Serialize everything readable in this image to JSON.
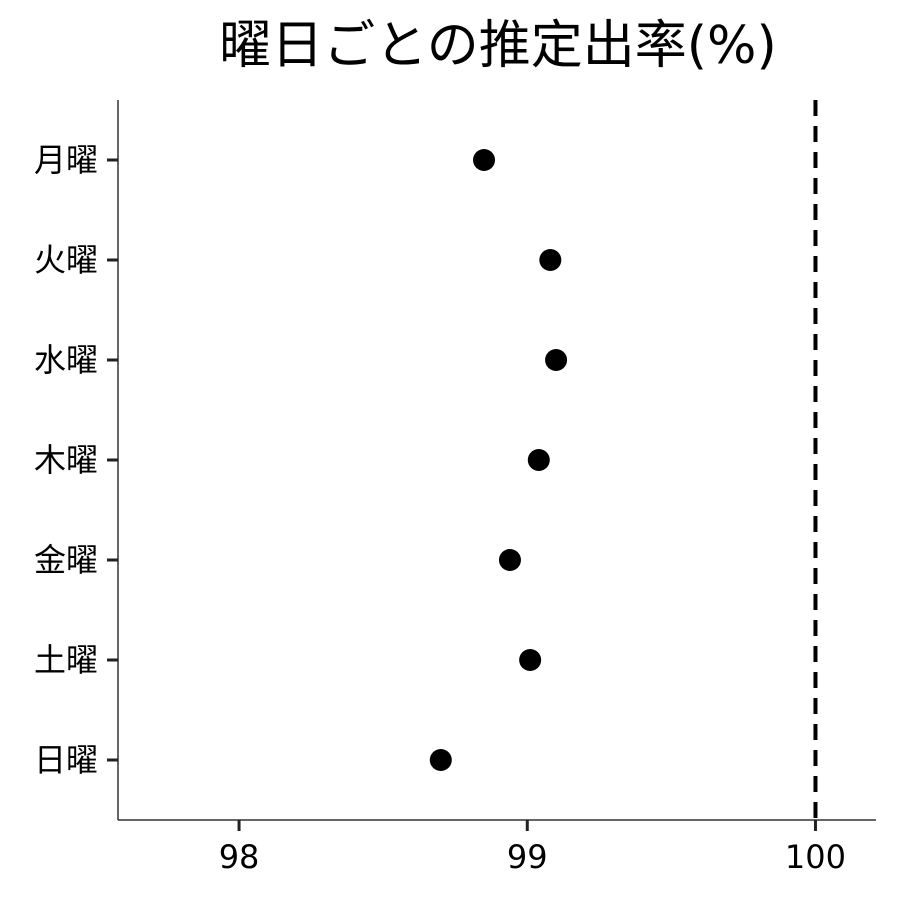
{
  "chart_data": {
    "type": "scatter",
    "title": "曜日ごとの推定出率(%)",
    "xlabel": "",
    "ylabel": "",
    "categories": [
      "月曜",
      "火曜",
      "水曜",
      "木曜",
      "金曜",
      "土曜",
      "日曜"
    ],
    "values": [
      98.85,
      99.08,
      99.1,
      99.04,
      98.94,
      99.01,
      98.7
    ],
    "xlim": [
      97.58,
      100.21
    ],
    "xticks": [
      98,
      99,
      100
    ],
    "xtick_labels": [
      "98",
      "99",
      "100"
    ],
    "reference_line": {
      "x": 100,
      "style": "dashed"
    },
    "grid": false,
    "legend": "none"
  }
}
